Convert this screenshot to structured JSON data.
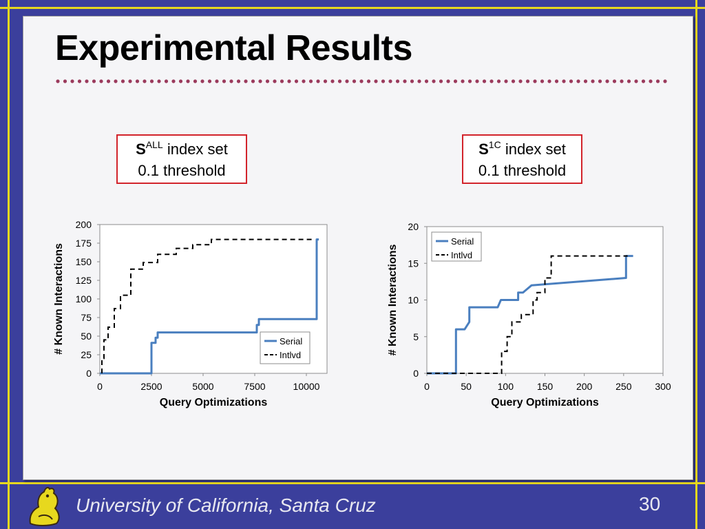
{
  "slide": {
    "title": "Experimental Results",
    "footer": "University of California, Santa Cruz",
    "page_number": "30",
    "colors": {
      "background": "#3b3f9c",
      "frame": "#e7d81e",
      "dots": "#9b3a5c",
      "box_border": "#d2232a",
      "serial": "#4a7fbf",
      "intlvd": "#000000"
    }
  },
  "labels": [
    {
      "prefix": "S",
      "sup": "ALL",
      "line1_rest": " index set",
      "line2": "0.1 threshold"
    },
    {
      "prefix": "S",
      "sup": "1C",
      "line1_rest": " index set",
      "line2": "0.1 threshold"
    }
  ],
  "logo": {
    "icon": "slug-mascot-icon"
  },
  "chart_data": [
    {
      "type": "line",
      "xlabel": "Query Optimizations",
      "ylabel": "# Known Interactions",
      "xlim": [
        0,
        11000
      ],
      "ylim": [
        0,
        200
      ],
      "xticks": [
        0,
        2500,
        5000,
        7500,
        10000
      ],
      "xtick_labels": [
        "0",
        "2500",
        "5000",
        "7500",
        "10000"
      ],
      "yticks": [
        0,
        25,
        50,
        75,
        100,
        125,
        150,
        175,
        200
      ],
      "ytick_labels": [
        "0",
        "25",
        "50",
        "75",
        "100",
        "125",
        "150",
        "175",
        "200"
      ],
      "grid": false,
      "legend_position": "bottom-right",
      "series": [
        {
          "name": "Serial",
          "style": "solid",
          "color": "#4a7fbf",
          "x": [
            0,
            2450,
            2500,
            2500,
            2700,
            2700,
            2800,
            2800,
            7600,
            7600,
            7700,
            7700,
            10500,
            10500,
            10600
          ],
          "y": [
            0,
            0,
            0,
            41,
            41,
            48,
            48,
            55,
            55,
            65,
            65,
            73,
            73,
            180,
            180
          ]
        },
        {
          "name": "Intlvd",
          "style": "dashed",
          "color": "#000000",
          "x": [
            100,
            100,
            200,
            200,
            400,
            400,
            700,
            700,
            1000,
            1000,
            1500,
            1500,
            2100,
            2100,
            2800,
            2800,
            3700,
            3700,
            4500,
            4500,
            5400,
            5400,
            10300
          ],
          "y": [
            0,
            20,
            20,
            45,
            45,
            62,
            62,
            87,
            87,
            105,
            105,
            140,
            140,
            149,
            149,
            160,
            160,
            168,
            168,
            173,
            173,
            180,
            180
          ]
        }
      ]
    },
    {
      "type": "line",
      "xlabel": "Query Optimizations",
      "ylabel": "# Known Interactions",
      "xlim": [
        0,
        300
      ],
      "ylim": [
        0,
        20
      ],
      "xticks": [
        0,
        50,
        100,
        150,
        200,
        250,
        300
      ],
      "xtick_labels": [
        "0",
        "50",
        "100",
        "150",
        "200",
        "250",
        "300"
      ],
      "yticks": [
        0,
        5,
        10,
        15,
        20
      ],
      "ytick_labels": [
        "0",
        "5",
        "10",
        "15",
        "20"
      ],
      "grid": false,
      "legend_position": "top-left",
      "series": [
        {
          "name": "Serial",
          "style": "solid",
          "color": "#4a7fbf",
          "x": [
            0,
            37,
            37,
            48,
            54,
            54,
            90,
            94,
            116,
            116,
            122,
            133,
            253,
            253,
            262
          ],
          "y": [
            0,
            0,
            6,
            6,
            7,
            9,
            9,
            10,
            10,
            11,
            11,
            12,
            13,
            16,
            16
          ]
        },
        {
          "name": "Intlvd",
          "style": "dashed",
          "color": "#000000",
          "x": [
            0,
            95,
            95,
            102,
            102,
            108,
            108,
            120,
            120,
            135,
            135,
            140,
            140,
            150,
            150,
            158,
            158,
            255
          ],
          "y": [
            0,
            0,
            3,
            3,
            5,
            5,
            7,
            7,
            8,
            8,
            10,
            10,
            11,
            11,
            13,
            13,
            16,
            16
          ]
        }
      ]
    }
  ]
}
